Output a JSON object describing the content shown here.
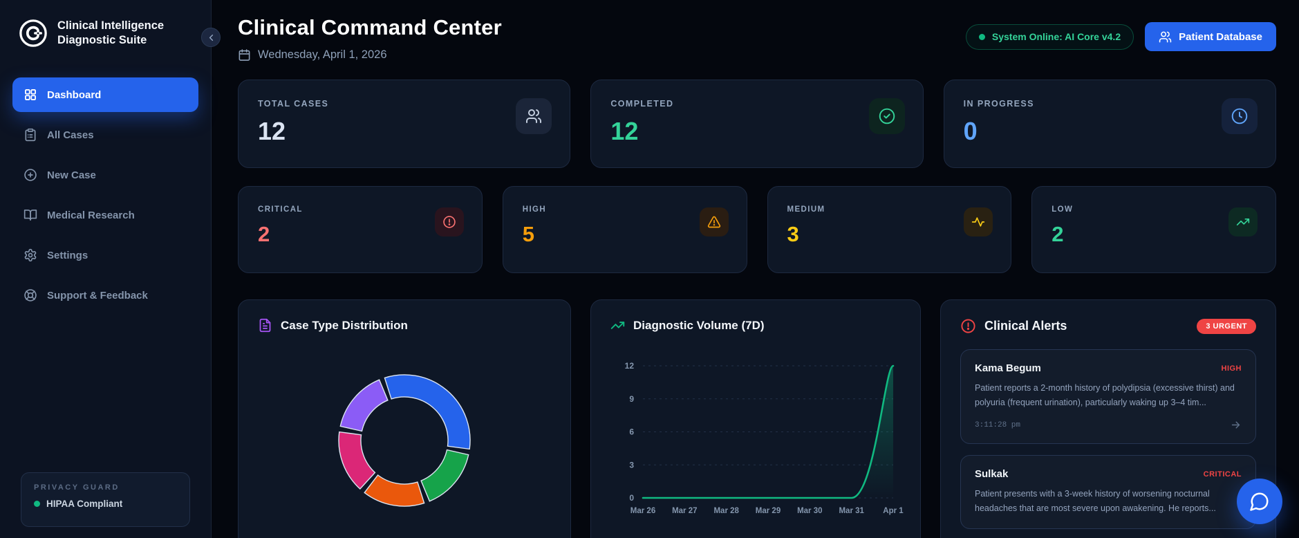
{
  "sidebar": {
    "brand": {
      "line1": "Clinical Intelligence",
      "line2": "Diagnostic Suite"
    },
    "items": [
      {
        "label": "Dashboard",
        "icon": "layout-grid-icon",
        "active": true
      },
      {
        "label": "All Cases",
        "icon": "clipboard-list-icon",
        "active": false
      },
      {
        "label": "New Case",
        "icon": "plus-circle-icon",
        "active": false
      },
      {
        "label": "Medical Research",
        "icon": "book-open-icon",
        "active": false
      },
      {
        "label": "Settings",
        "icon": "gear-icon",
        "active": false
      },
      {
        "label": "Support & Feedback",
        "icon": "life-buoy-icon",
        "active": false
      }
    ],
    "privacy": {
      "title": "PRIVACY GUARD",
      "status": "HIPAA Compliant",
      "status_color": "#10b981"
    }
  },
  "header": {
    "title": "Clinical Command Center",
    "date": "Wednesday, April 1, 2026",
    "system_status": "System Online: AI Core v4.2",
    "system_status_color": "#34d399",
    "patient_db_label": "Patient Database",
    "accent_color": "#2563eb"
  },
  "stats": [
    {
      "label": "TOTAL CASES",
      "value": "12",
      "color": "#dbe4f2",
      "icon": "users-icon"
    },
    {
      "label": "COMPLETED",
      "value": "12",
      "color": "#34d399",
      "icon": "check-circle-icon"
    },
    {
      "label": "IN PROGRESS",
      "value": "0",
      "color": "#60a5fa",
      "icon": "clock-icon"
    }
  ],
  "severity": [
    {
      "label": "CRITICAL",
      "value": "2",
      "color": "#f87171",
      "icon": "alert-circle-icon"
    },
    {
      "label": "HIGH",
      "value": "5",
      "color": "#f59e0b",
      "icon": "alert-triangle-icon"
    },
    {
      "label": "MEDIUM",
      "value": "3",
      "color": "#facc15",
      "icon": "activity-icon"
    },
    {
      "label": "LOW",
      "value": "2",
      "color": "#34d399",
      "icon": "trending-up-icon"
    }
  ],
  "panels": {
    "distribution": {
      "title": "Case Type Distribution",
      "icon": "file-text-icon",
      "icon_color": "#a855f7"
    },
    "volume": {
      "title": "Diagnostic Volume (7D)",
      "icon": "trending-up-icon",
      "icon_color": "#10b981"
    },
    "alerts": {
      "title": "Clinical Alerts",
      "icon": "alert-circle-icon",
      "icon_color": "#ef4444",
      "badge": "3 URGENT",
      "badge_color": "#ef4444",
      "items": [
        {
          "name": "Kama Begum",
          "severity": "HIGH",
          "text": "Patient reports a 2-month history of polydipsia (excessive thirst) and polyuria (frequent urination), particularly waking up 3–4 tim...",
          "time": "3:11:28 pm"
        },
        {
          "name": "Sulkak",
          "severity": "CRITICAL",
          "text": "Patient presents with a 3-week history of worsening nocturnal headaches that are most severe upon awakening. He reports...",
          "time": ""
        }
      ]
    }
  },
  "chart_data": [
    {
      "type": "pie",
      "style": "donut",
      "title": "Case Type Distribution",
      "values": [
        4,
        2,
        2,
        2,
        2
      ],
      "colors": [
        "#2563eb",
        "#16a34a",
        "#ea580c",
        "#db2777",
        "#8b5cf6"
      ],
      "start_angle_deg": -20,
      "legend": "none"
    },
    {
      "type": "area",
      "title": "Diagnostic Volume (7D)",
      "x": [
        "Mar 26",
        "Mar 27",
        "Mar 28",
        "Mar 29",
        "Mar 30",
        "Mar 31",
        "Apr 1"
      ],
      "values": [
        0,
        0,
        0,
        0,
        0,
        0,
        12
      ],
      "yticks": [
        0,
        3,
        6,
        9,
        12
      ],
      "ylim": [
        0,
        12
      ],
      "grid": "dashed-horizontal",
      "color": "#10b981",
      "legend": "none"
    }
  ]
}
